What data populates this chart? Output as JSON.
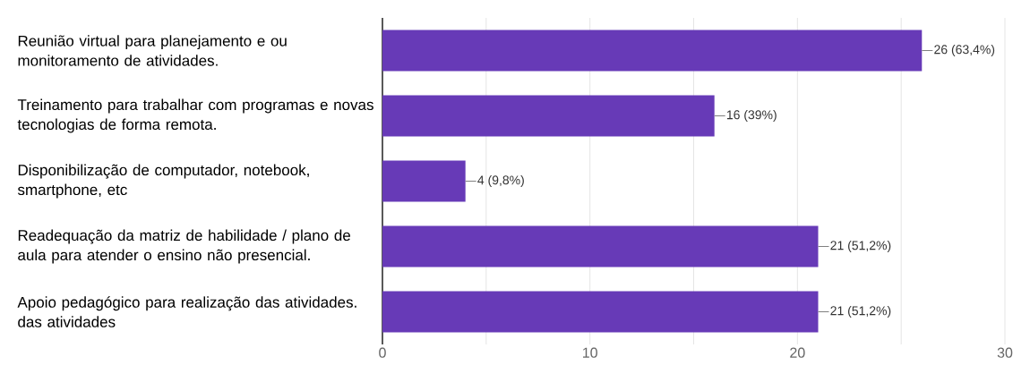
{
  "chart_data": {
    "type": "bar",
    "orientation": "horizontal",
    "categories": [
      "Reunião virtual para planejamento e ou monitoramento de atividades.",
      "Treinamento para trabalhar com programas e novas tecnologias de forma remota.",
      "Disponibilização de computador, notebook, smartphone, etc",
      "Readequação da matriz de habilidade / plano de aula para atender o ensino não presencial.",
      "Apoio pedagógico para realização das atividades. das atividades"
    ],
    "values": [
      26,
      16,
      4,
      21,
      21
    ],
    "value_labels": [
      "26 (63,4%)",
      "16 (39%)",
      "4 (9,8%)",
      "21 (51,2%)",
      "21 (51,2%)"
    ],
    "color": "#673ab7",
    "xlim": [
      0,
      30
    ],
    "xticks": [
      0,
      {
        "value": 5,
        "label": null
      },
      10,
      {
        "value": 15,
        "label": null
      },
      20,
      {
        "value": 25,
        "label": null
      },
      30
    ],
    "grid": "x"
  }
}
